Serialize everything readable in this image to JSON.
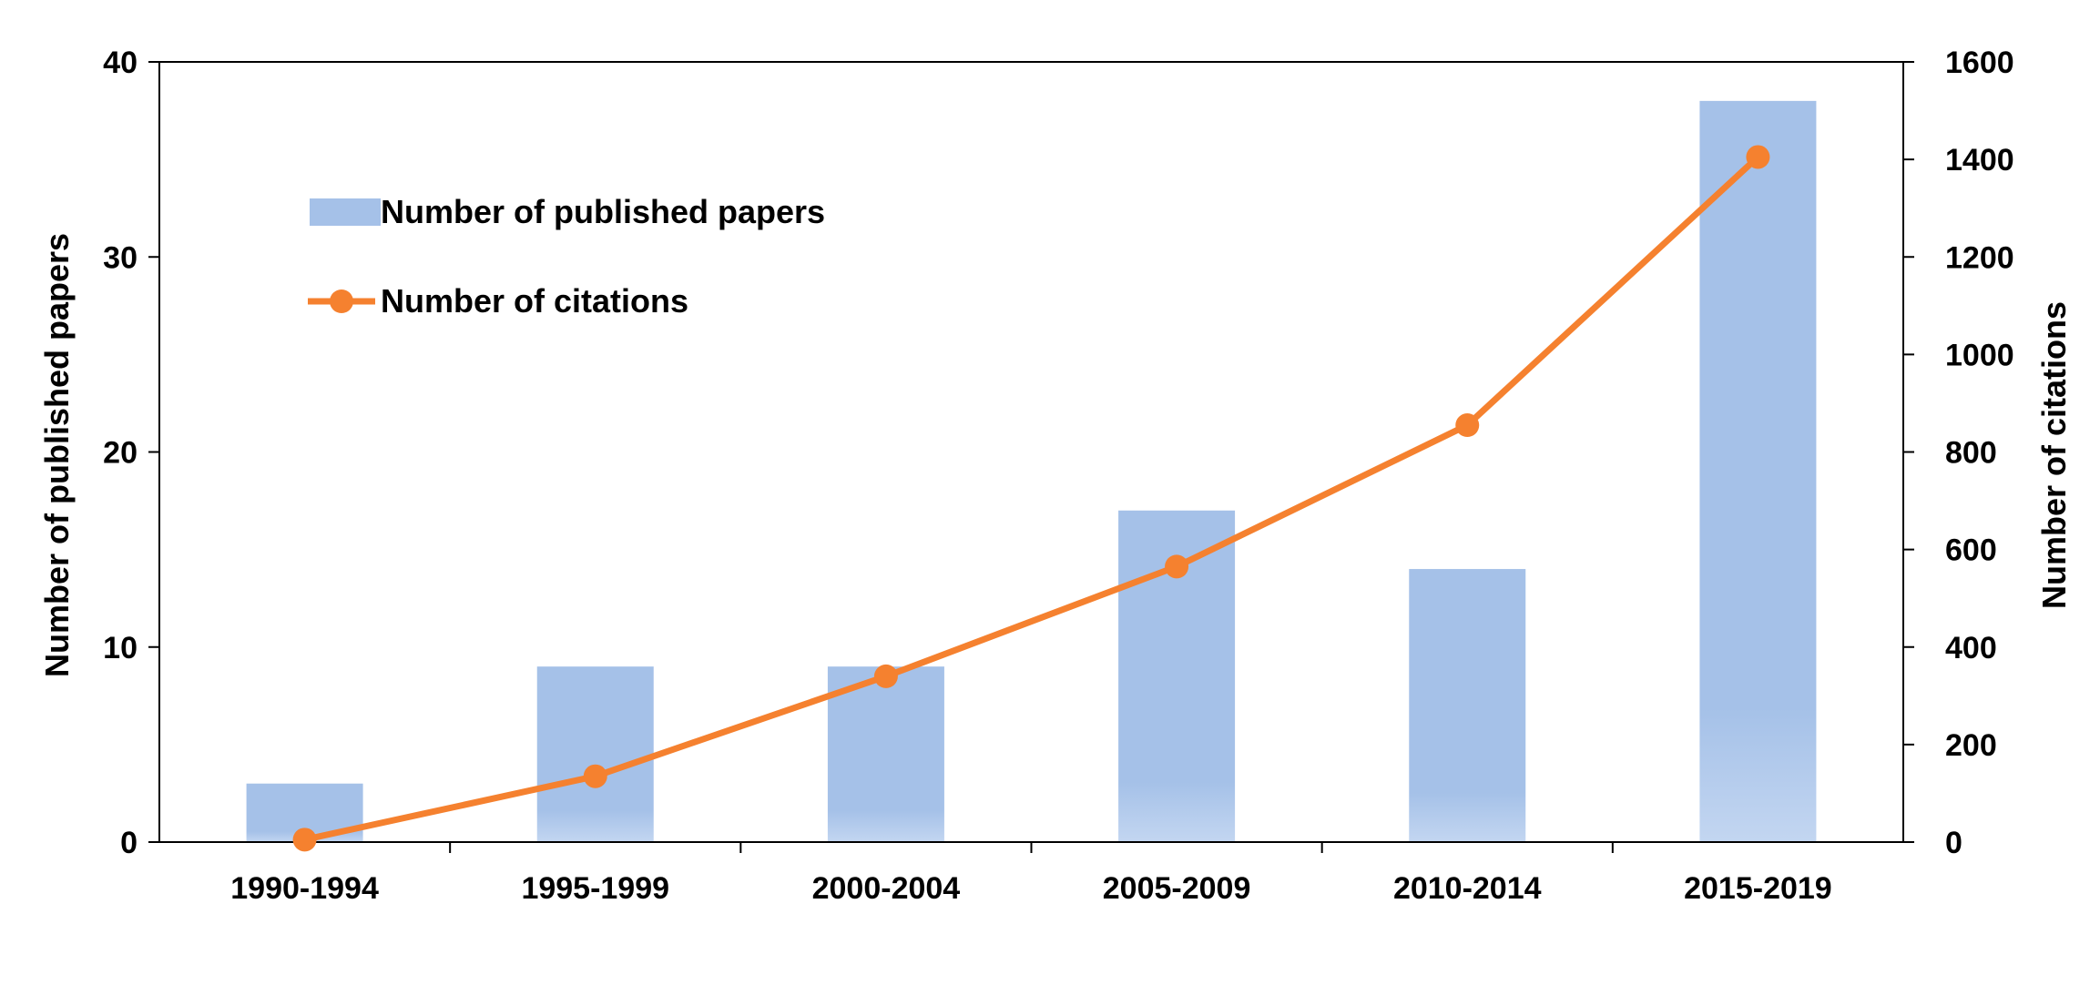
{
  "chart_data": {
    "type": "bar",
    "categories": [
      "1990-1994",
      "1995-1999",
      "2000-2004",
      "2005-2009",
      "2010-2014",
      "2015-2019"
    ],
    "series": [
      {
        "name": "Number of published papers",
        "type": "bar",
        "axis": "left",
        "values": [
          3,
          9,
          9,
          17,
          14,
          38
        ]
      },
      {
        "name": "Number of citations",
        "type": "line",
        "axis": "right",
        "values": [
          5,
          135,
          340,
          565,
          855,
          1405
        ]
      }
    ],
    "ylabel": "Number of published  papers",
    "ylabel_right": "Number of citations",
    "xlabel": "",
    "ylim": [
      0,
      40
    ],
    "ylim_right": [
      0,
      1600
    ],
    "yticks": [
      0,
      10,
      20,
      30,
      40
    ],
    "yticks_right": [
      0,
      200,
      400,
      600,
      800,
      1000,
      1200,
      1400,
      1600
    ],
    "grid": false,
    "legend_position": "top-left",
    "colors": {
      "bar": "#a5c1e8",
      "line": "#f5812f"
    }
  }
}
